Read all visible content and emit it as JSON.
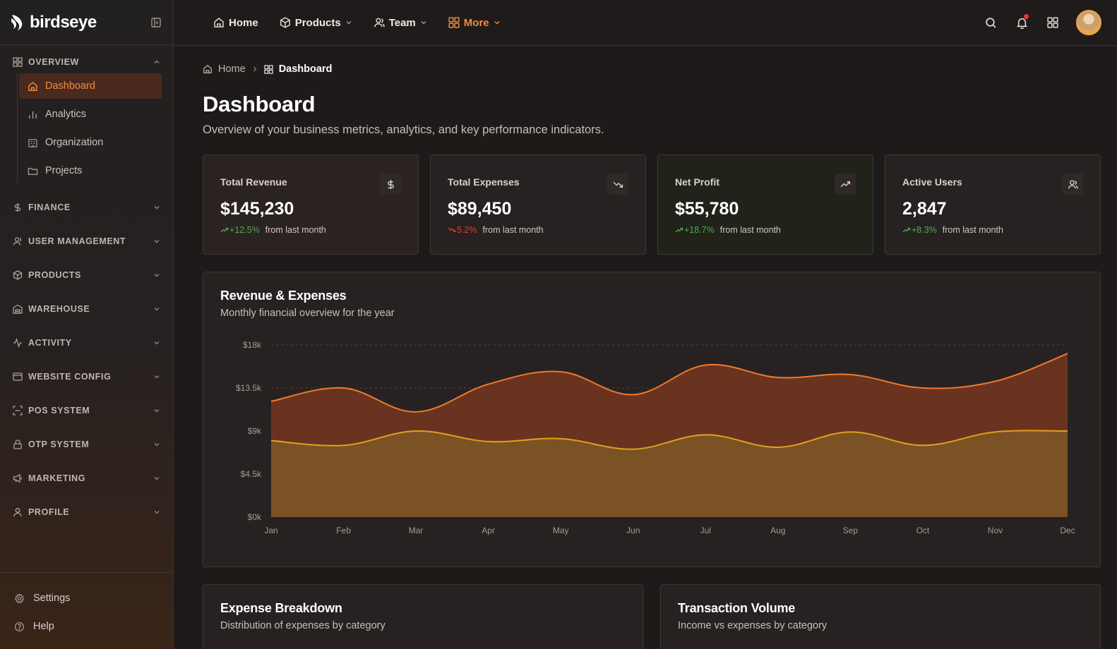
{
  "brand": {
    "name": "birdseye"
  },
  "sidebar": {
    "overview": {
      "label": "OVERVIEW",
      "items": [
        {
          "label": "Dashboard",
          "icon": "home-icon",
          "active": true
        },
        {
          "label": "Analytics",
          "icon": "bar-chart-icon"
        },
        {
          "label": "Organization",
          "icon": "building-icon"
        },
        {
          "label": "Projects",
          "icon": "folder-icon"
        }
      ]
    },
    "sections": [
      {
        "label": "FINANCE",
        "icon": "dollar-icon"
      },
      {
        "label": "USER MANAGEMENT",
        "icon": "user-icon"
      },
      {
        "label": "PRODUCTS",
        "icon": "box-icon"
      },
      {
        "label": "WAREHOUSE",
        "icon": "warehouse-icon"
      },
      {
        "label": "ACTIVITY",
        "icon": "activity-icon"
      },
      {
        "label": "WEBSITE CONFIG",
        "icon": "browser-icon"
      },
      {
        "label": "POS SYSTEM",
        "icon": "scan-icon"
      },
      {
        "label": "OTP SYSTEM",
        "icon": "lock-icon"
      },
      {
        "label": "MARKETING",
        "icon": "megaphone-icon"
      },
      {
        "label": "PROFILE",
        "icon": "profile-icon"
      }
    ],
    "bottom": {
      "settings": "Settings",
      "help": "Help"
    }
  },
  "topnav": {
    "home": "Home",
    "products": "Products",
    "team": "Team",
    "more": "More"
  },
  "breadcrumb": {
    "home": "Home",
    "current": "Dashboard"
  },
  "page": {
    "title": "Dashboard",
    "subtitle": "Overview of your business metrics, analytics, and key performance indicators."
  },
  "stats": [
    {
      "label": "Total Revenue",
      "value": "$145,230",
      "change": "+12.5%",
      "direction": "up",
      "suffix": "from last month",
      "icon": "dollar-icon"
    },
    {
      "label": "Total Expenses",
      "value": "$89,450",
      "change": "5.2%",
      "direction": "down",
      "suffix": "from last month",
      "icon": "trending-down-icon"
    },
    {
      "label": "Net Profit",
      "value": "$55,780",
      "change": "+18.7%",
      "direction": "up",
      "suffix": "from last month",
      "icon": "trending-up-icon"
    },
    {
      "label": "Active Users",
      "value": "2,847",
      "change": "+8.3%",
      "direction": "up",
      "suffix": "from last month",
      "icon": "users-icon"
    }
  ],
  "revenue_chart": {
    "title": "Revenue & Expenses",
    "subtitle": "Monthly financial overview for the year"
  },
  "chart_data": {
    "type": "area",
    "categories": [
      "Jan",
      "Feb",
      "Mar",
      "Apr",
      "May",
      "Jun",
      "Jul",
      "Aug",
      "Sep",
      "Oct",
      "Nov",
      "Dec"
    ],
    "series": [
      {
        "values": [
          12100,
          13500,
          11000,
          13900,
          15200,
          12800,
          15900,
          14600,
          14900,
          13500,
          14200,
          17100
        ],
        "color": "#f07a2c"
      },
      {
        "values": [
          8000,
          7500,
          9000,
          7900,
          8200,
          7100,
          8600,
          7300,
          8900,
          7500,
          8900,
          9000
        ],
        "color": "#e0a020"
      }
    ],
    "y_ticks": [
      "$0k",
      "$4.5k",
      "$9k",
      "$13.5k",
      "$18k"
    ],
    "ylim": [
      0,
      18000
    ],
    "grid": "horizontal-dashed"
  },
  "expense_card": {
    "title": "Expense Breakdown",
    "subtitle": "Distribution of expenses by category"
  },
  "transaction_card": {
    "title": "Transaction Volume",
    "subtitle": "Income vs expenses by category"
  }
}
